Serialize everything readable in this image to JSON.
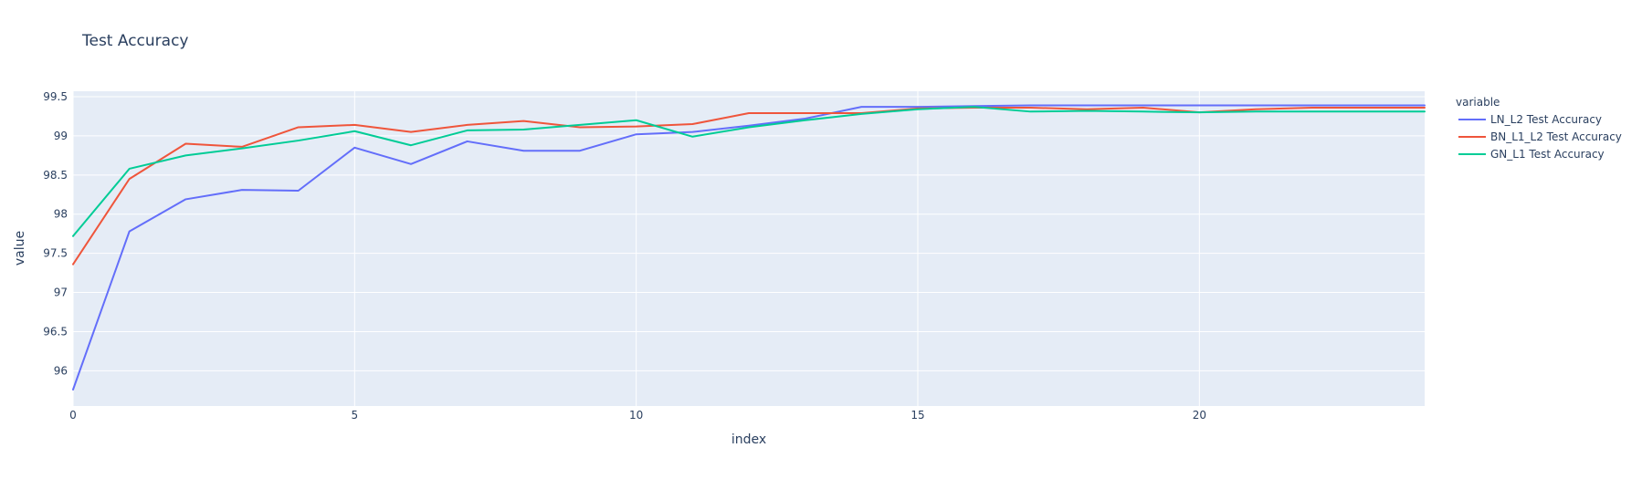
{
  "chart_data": {
    "type": "line",
    "title": "Test Accuracy",
    "xlabel": "index",
    "ylabel": "value",
    "xlim": [
      0,
      24
    ],
    "ylim": [
      95.55,
      99.57
    ],
    "x_ticks": [
      0,
      5,
      10,
      15,
      20
    ],
    "x_tick_labels": [
      "0",
      "5",
      "10",
      "15",
      "20"
    ],
    "y_ticks": [
      96,
      96.5,
      97,
      97.5,
      98,
      98.5,
      99,
      99.5
    ],
    "y_tick_labels": [
      "96",
      "96.5",
      "97",
      "97.5",
      "98",
      "98.5",
      "99",
      "99.5"
    ],
    "grid": true,
    "plot_background": "#e5ecf6",
    "legend": {
      "title": "variable",
      "placement": "right"
    },
    "x": [
      0,
      1,
      2,
      3,
      4,
      5,
      6,
      7,
      8,
      9,
      10,
      11,
      12,
      13,
      14,
      15,
      16,
      17,
      18,
      19,
      20,
      21,
      22,
      23,
      24
    ],
    "series": [
      {
        "name": "LN_L2 Test Accuracy",
        "color": "#636efa",
        "values": [
          95.76,
          97.78,
          98.19,
          98.31,
          98.3,
          98.85,
          98.64,
          98.93,
          98.81,
          98.81,
          99.02,
          99.05,
          99.13,
          99.22,
          99.37,
          99.37,
          99.38,
          99.39,
          99.39,
          99.39,
          99.39,
          99.39,
          99.39,
          99.39,
          99.39
        ]
      },
      {
        "name": "BN_L1_L2 Test Accuracy",
        "color": "#ef553b",
        "values": [
          97.36,
          98.45,
          98.9,
          98.86,
          99.11,
          99.14,
          99.05,
          99.14,
          99.19,
          99.11,
          99.12,
          99.15,
          99.29,
          99.29,
          99.29,
          99.35,
          99.36,
          99.36,
          99.34,
          99.36,
          99.3,
          99.34,
          99.36,
          99.36,
          99.36
        ]
      },
      {
        "name": "GN_L1 Test Accuracy",
        "color": "#00cc96",
        "values": [
          97.72,
          98.58,
          98.75,
          98.84,
          98.94,
          99.06,
          98.88,
          99.07,
          99.08,
          99.14,
          99.2,
          98.99,
          99.11,
          99.2,
          99.28,
          99.34,
          99.37,
          99.31,
          99.32,
          99.31,
          99.3,
          99.31,
          99.31,
          99.31,
          99.31
        ]
      }
    ]
  }
}
